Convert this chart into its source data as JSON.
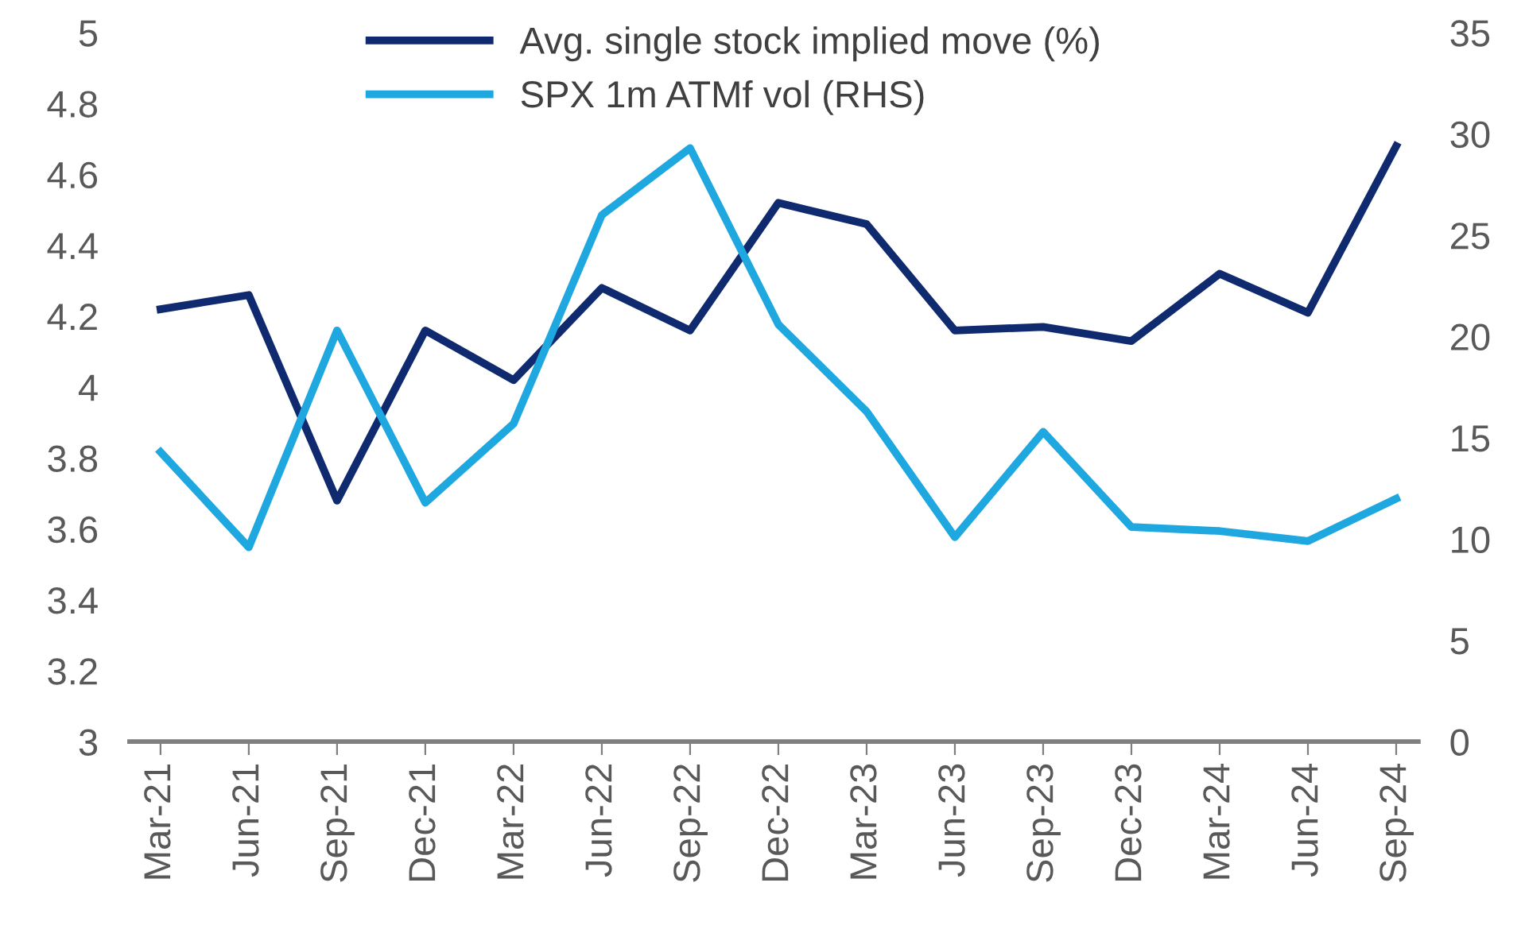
{
  "chart_data": {
    "type": "line",
    "categories": [
      "Mar-21",
      "Jun-21",
      "Sep-21",
      "Dec-21",
      "Mar-22",
      "Jun-22",
      "Sep-22",
      "Dec-22",
      "Mar-23",
      "Jun-23",
      "Sep-23",
      "Dec-23",
      "Mar-24",
      "Jun-24",
      "Sep-24"
    ],
    "series": [
      {
        "name": "Avg. single stock implied move (%)",
        "color": "#0f2a6e",
        "values": [
          4.22,
          4.26,
          3.68,
          4.16,
          4.02,
          4.28,
          4.16,
          4.52,
          4.46,
          4.16,
          4.17,
          4.13,
          4.32,
          4.21,
          4.68
        ]
      },
      {
        "name": "SPX 1m ATMf vol (RHS)",
        "color": "#1fa8e0",
        "axis": "y2",
        "values": [
          14.3,
          9.6,
          20.3,
          11.8,
          15.7,
          26.0,
          29.3,
          20.6,
          16.3,
          10.1,
          15.3,
          10.6,
          10.4,
          9.9,
          12.0
        ]
      }
    ],
    "ylim": [
      3,
      5
    ],
    "yticks": [
      3,
      3.2,
      3.4,
      3.6,
      3.8,
      4,
      4.2,
      4.4,
      4.6,
      4.8,
      5
    ],
    "y2lim": [
      0,
      35
    ],
    "y2ticks": [
      0,
      5,
      10,
      15,
      20,
      25,
      30,
      35
    ],
    "grid": false,
    "legend": "top",
    "marker": "none",
    "line_style": "solid"
  }
}
